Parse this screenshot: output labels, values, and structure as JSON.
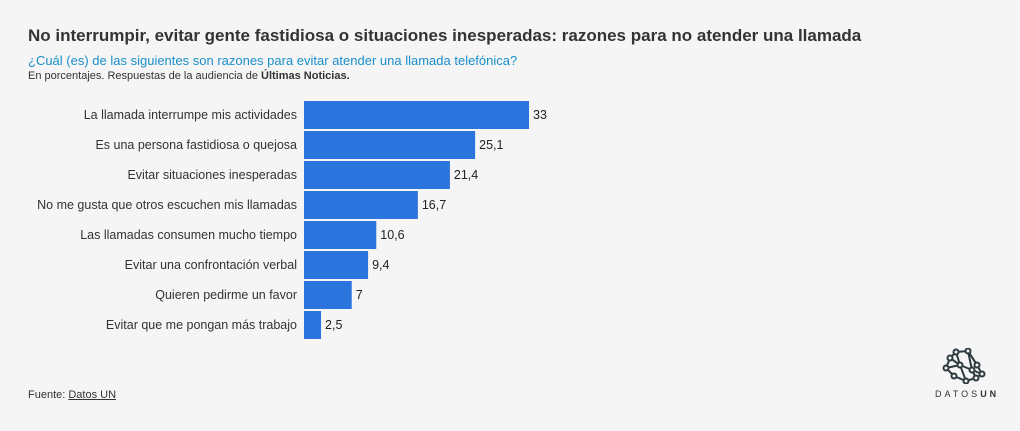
{
  "title": "No interrumpir, evitar gente fastidiosa o situaciones inesperadas: razones para no atender una llamada",
  "subtitle": "¿Cuál (es) de las siguientes son razones para evitar atender una llamada telefónica?",
  "note_prefix": "En porcentajes. Respuestas de la audiencia de ",
  "note_bold": "Últimas Noticias.",
  "source_prefix": "Fuente: ",
  "source_link": "Datos UN",
  "logo": {
    "text_light": "DATOS",
    "text_bold": "UN"
  },
  "colors": {
    "bar": "#2b73dd"
  },
  "chart_data": {
    "type": "bar",
    "orientation": "horizontal",
    "categories": [
      "La llamada interrumpe mis actividades",
      "Es una persona fastidiosa o quejosa",
      "Evitar situaciones inesperadas",
      "No me gusta que otros escuchen mis llamadas",
      "Las llamadas consumen mucho tiempo",
      "Evitar una confrontación verbal",
      "Quieren pedirme un favor",
      "Evitar que me pongan más trabajo"
    ],
    "values": [
      33,
      25.1,
      21.4,
      16.7,
      10.6,
      9.4,
      7,
      2.5
    ],
    "value_labels": [
      "33",
      "25,1",
      "21,4",
      "16,7",
      "10,6",
      "9,4",
      "7",
      "2,5"
    ],
    "xlim": [
      0,
      33
    ],
    "grid": false
  }
}
